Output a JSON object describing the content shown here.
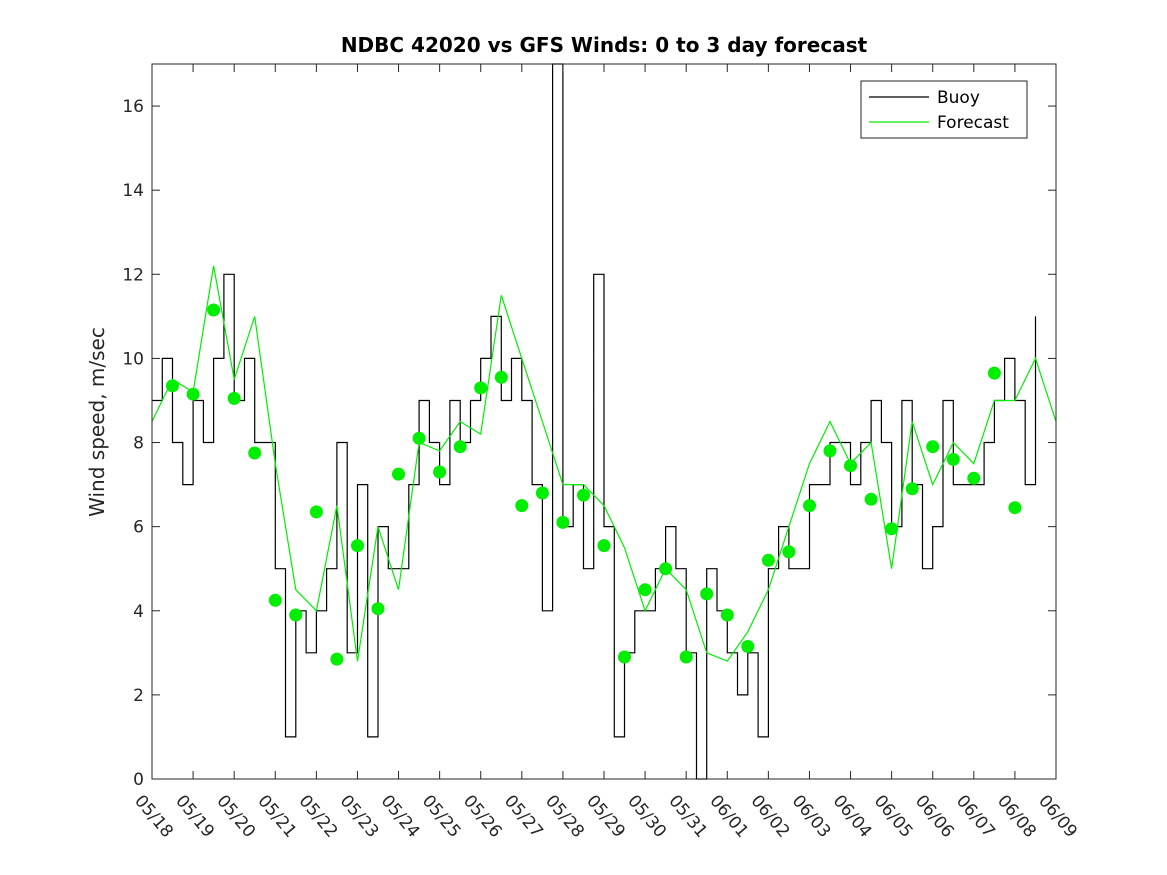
{
  "chart_data": {
    "type": "line",
    "title": "NDBC 42020 vs GFS Winds: 0 to 3 day forecast",
    "xlabel": "",
    "ylabel": "Wind speed, m/sec",
    "x_start": "05/18",
    "x_end": "06/09",
    "xlim_days": [
      0,
      22
    ],
    "ylim": [
      0,
      17
    ],
    "yticks": [
      0,
      2,
      4,
      6,
      8,
      10,
      12,
      14,
      16
    ],
    "xtick_labels": [
      "05/18",
      "05/19",
      "05/20",
      "05/21",
      "05/22",
      "05/23",
      "05/24",
      "05/25",
      "05/26",
      "05/27",
      "05/28",
      "05/29",
      "05/30",
      "05/31",
      "06/01",
      "06/02",
      "06/03",
      "06/04",
      "06/05",
      "06/06",
      "06/07",
      "06/08",
      "06/09"
    ],
    "grid": false,
    "legend_position": "top-right",
    "colors": {
      "buoy": "#000000",
      "forecast": "#00ee00",
      "markers": "#00ee00"
    },
    "series": [
      {
        "name": "Buoy",
        "x": [
          "05/18 00:00",
          "05/18 06:00",
          "05/18 12:00",
          "05/18 18:00",
          "05/19 00:00",
          "05/19 06:00",
          "05/19 12:00",
          "05/19 18:00",
          "05/20 00:00",
          "05/20 06:00",
          "05/20 12:00",
          "05/20 18:00",
          "05/21 00:00",
          "05/21 06:00",
          "05/21 12:00",
          "05/21 18:00",
          "05/22 00:00",
          "05/22 06:00",
          "05/22 12:00",
          "05/22 18:00",
          "05/23 00:00",
          "05/23 06:00",
          "05/23 12:00",
          "05/23 18:00",
          "05/24 00:00",
          "05/24 06:00",
          "05/24 12:00",
          "05/24 18:00",
          "05/25 00:00",
          "05/25 06:00",
          "05/25 12:00",
          "05/25 18:00",
          "05/26 00:00",
          "05/26 06:00",
          "05/26 12:00",
          "05/26 18:00",
          "05/27 00:00",
          "05/27 06:00",
          "05/27 12:00",
          "05/27 18:00",
          "05/28 00:00",
          "05/28 06:00",
          "05/28 12:00",
          "05/28 18:00",
          "05/29 00:00",
          "05/29 06:00",
          "05/29 12:00",
          "05/29 18:00",
          "05/30 00:00",
          "05/30 06:00",
          "05/30 12:00",
          "05/30 18:00",
          "05/31 00:00",
          "05/31 06:00",
          "05/31 12:00",
          "05/31 18:00",
          "06/01 00:00",
          "06/01 06:00",
          "06/01 12:00",
          "06/01 18:00",
          "06/02 00:00",
          "06/02 06:00",
          "06/02 12:00",
          "06/02 18:00",
          "06/03 00:00",
          "06/03 06:00",
          "06/03 12:00",
          "06/03 18:00",
          "06/04 00:00",
          "06/04 06:00",
          "06/04 12:00",
          "06/04 18:00",
          "06/05 00:00",
          "06/05 06:00",
          "06/05 12:00",
          "06/05 18:00",
          "06/06 00:00",
          "06/06 06:00",
          "06/06 12:00",
          "06/06 18:00",
          "06/07 00:00",
          "06/07 06:00",
          "06/07 12:00",
          "06/07 18:00",
          "06/08 00:00",
          "06/08 06:00",
          "06/08 12:00"
        ],
        "values": [
          9,
          10,
          8,
          7,
          9,
          8,
          10,
          12,
          9,
          10,
          8,
          8,
          5,
          1,
          4,
          3,
          4,
          5,
          8,
          3,
          7,
          1,
          6,
          5,
          5,
          7,
          9,
          8,
          7,
          9,
          8,
          9,
          10,
          11,
          9,
          10,
          9,
          7,
          4,
          17,
          6,
          7,
          5,
          12,
          6,
          1,
          3,
          4,
          4,
          5,
          6,
          5,
          3,
          0,
          5,
          4,
          3,
          2,
          3,
          1,
          5,
          6,
          5,
          5,
          7,
          7,
          8,
          8,
          7,
          8,
          9,
          8,
          6,
          9,
          7,
          5,
          6,
          9,
          7,
          7,
          7,
          8,
          9,
          10,
          9,
          7,
          11
        ]
      },
      {
        "name": "Forecast",
        "x": [
          "05/18 00:00",
          "05/18 12:00",
          "05/19 00:00",
          "05/19 12:00",
          "05/20 00:00",
          "05/20 12:00",
          "05/21 00:00",
          "05/21 12:00",
          "05/22 00:00",
          "05/22 12:00",
          "05/23 00:00",
          "05/23 12:00",
          "05/24 00:00",
          "05/24 12:00",
          "05/25 00:00",
          "05/25 12:00",
          "05/26 00:00",
          "05/26 12:00",
          "05/27 00:00",
          "05/27 12:00",
          "05/28 00:00",
          "05/28 12:00",
          "05/29 00:00",
          "05/29 12:00",
          "05/30 00:00",
          "05/30 12:00",
          "05/31 00:00",
          "05/31 12:00",
          "06/01 00:00",
          "06/01 12:00",
          "06/02 00:00",
          "06/02 12:00",
          "06/03 00:00",
          "06/03 12:00",
          "06/04 00:00",
          "06/04 12:00",
          "06/05 00:00",
          "06/05 12:00",
          "06/06 00:00",
          "06/06 12:00",
          "06/07 00:00",
          "06/07 12:00",
          "06/08 00:00",
          "06/08 12:00",
          "06/09 00:00"
        ],
        "values": [
          8.5,
          9.5,
          9.2,
          12.2,
          9.5,
          11.0,
          7.5,
          4.5,
          4.0,
          6.5,
          2.8,
          6.0,
          4.5,
          8.0,
          7.8,
          8.5,
          8.2,
          11.5,
          10.0,
          8.5,
          7.0,
          7.0,
          6.5,
          5.5,
          4.0,
          5.0,
          4.5,
          3.0,
          2.8,
          3.5,
          4.5,
          6.0,
          7.5,
          8.5,
          7.5,
          8.0,
          5.0,
          8.5,
          7.0,
          8.0,
          7.5,
          9.0,
          9.0,
          10.0,
          8.5
        ]
      },
      {
        "name": "",
        "marker": "circle",
        "x": [
          "05/18 12:00",
          "05/19 00:00",
          "05/19 12:00",
          "05/20 00:00",
          "05/20 12:00",
          "05/21 00:00",
          "05/21 12:00",
          "05/22 00:00",
          "05/22 12:00",
          "05/23 00:00",
          "05/23 12:00",
          "05/24 00:00",
          "05/24 12:00",
          "05/25 00:00",
          "05/25 12:00",
          "05/26 00:00",
          "05/26 12:00",
          "05/27 00:00",
          "05/27 12:00",
          "05/28 00:00",
          "05/28 12:00",
          "05/29 00:00",
          "05/29 12:00",
          "05/30 00:00",
          "05/30 12:00",
          "05/31 00:00",
          "05/31 12:00",
          "06/01 00:00",
          "06/01 12:00",
          "06/02 00:00",
          "06/02 12:00",
          "06/03 00:00",
          "06/03 12:00",
          "06/04 00:00",
          "06/04 12:00",
          "06/05 00:00",
          "06/05 12:00",
          "06/06 00:00",
          "06/06 12:00",
          "06/07 00:00",
          "06/07 12:00",
          "06/08 00:00"
        ],
        "values": [
          9.35,
          9.15,
          11.15,
          9.05,
          7.75,
          4.25,
          3.9,
          6.35,
          2.85,
          5.55,
          4.05,
          7.25,
          8.1,
          7.3,
          7.9,
          9.3,
          9.55,
          6.5,
          6.8,
          6.1,
          6.75,
          5.55,
          2.9,
          4.5,
          5.0,
          2.9,
          4.4,
          3.9,
          3.15,
          5.2,
          5.4,
          6.5,
          7.8,
          7.45,
          6.65,
          5.95,
          6.9,
          7.9,
          7.6,
          7.15,
          9.65,
          6.45
        ]
      }
    ]
  }
}
